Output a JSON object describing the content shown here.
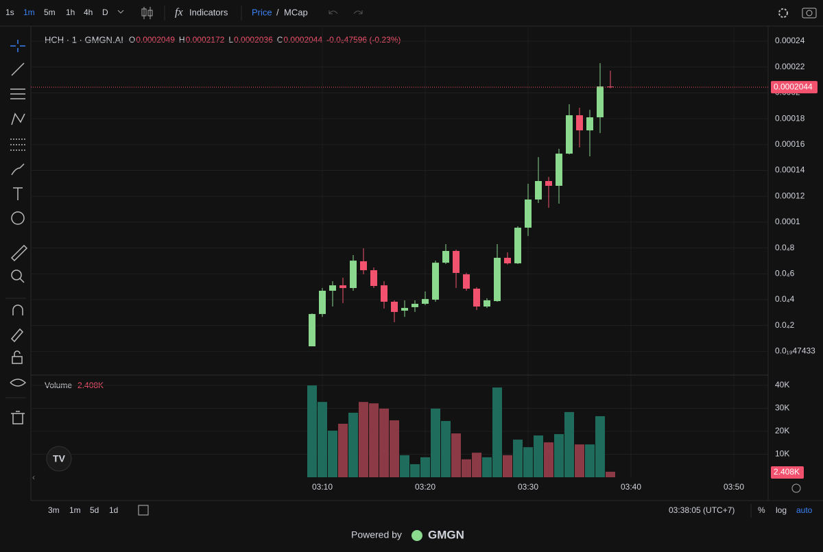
{
  "toolbar": {
    "intervals": [
      "1s",
      "1m",
      "5m",
      "1h",
      "4h",
      "D"
    ],
    "active_interval": 1,
    "indicators": "Indicators",
    "price": "Price",
    "sep": "/",
    "mcap": "MCap"
  },
  "bottom": {
    "ranges": [
      "3m",
      "1m",
      "5d",
      "1d"
    ],
    "clock": "03:38:05 (UTC+7)",
    "percent": "%",
    "log": "log",
    "auto": "auto"
  },
  "footer": {
    "powered": "Powered by",
    "brand": "GMGN"
  },
  "chart_data": {
    "type": "candlestick",
    "legend": {
      "title": "HCH · 1 · GMGN.AI",
      "items": [
        {
          "key": "O",
          "value": 0.0002049
        },
        {
          "key": "H",
          "value": 0.0002172
        },
        {
          "key": "L",
          "value": 0.0002036
        },
        {
          "key": "C",
          "value": 0.0002044
        }
      ],
      "change": "-0.0₆47596 (-0.23%)"
    },
    "up_color": "#8bd88f",
    "down_color": "#f2526e",
    "volume_up_color": "#1f6b5c",
    "volume_down_color": "#8c3a45",
    "x": [
      "03:09",
      "03:10",
      "03:11",
      "03:12",
      "03:13",
      "03:14",
      "03:15",
      "03:16",
      "03:17",
      "03:18",
      "03:19",
      "03:20",
      "03:21",
      "03:22",
      "03:23",
      "03:24",
      "03:25",
      "03:26",
      "03:27",
      "03:28",
      "03:29",
      "03:30",
      "03:31",
      "03:32",
      "03:33",
      "03:34",
      "03:35",
      "03:36",
      "03:37",
      "03:38"
    ],
    "candles": [
      {
        "o": 3.9e-06,
        "h": 2.94e-05,
        "l": 3.9e-06,
        "c": 2.89e-05
      },
      {
        "o": 2.89e-05,
        "h": 4.9e-05,
        "l": 2.67e-05,
        "c": 4.69e-05
      },
      {
        "o": 4.69e-05,
        "h": 5.43e-05,
        "l": 3.47e-05,
        "c": 5.11e-05
      },
      {
        "o": 5.11e-05,
        "h": 5.7e-05,
        "l": 3.73e-05,
        "c": 4.9e-05
      },
      {
        "o": 4.9e-05,
        "h": 7.45e-05,
        "l": 4.69e-05,
        "c": 7.02e-05
      },
      {
        "o": 6.97e-05,
        "h": 7.98e-05,
        "l": 5.96e-05,
        "c": 6.28e-05
      },
      {
        "o": 6.28e-05,
        "h": 6.49e-05,
        "l": 4.9e-05,
        "c": 5.06e-05
      },
      {
        "o": 5.11e-05,
        "h": 5.43e-05,
        "l": 3.31e-05,
        "c": 3.84e-05
      },
      {
        "o": 3.84e-05,
        "h": 3.95e-05,
        "l": 2.25e-05,
        "c": 3.05e-05
      },
      {
        "o": 3.15e-05,
        "h": 3.95e-05,
        "l": 2.67e-05,
        "c": 3.36e-05
      },
      {
        "o": 3.42e-05,
        "h": 3.95e-05,
        "l": 3.05e-05,
        "c": 3.68e-05
      },
      {
        "o": 3.68e-05,
        "h": 4.64e-05,
        "l": 3.58e-05,
        "c": 4.05e-05
      },
      {
        "o": 4e-05,
        "h": 7.02e-05,
        "l": 3.84e-05,
        "c": 6.86e-05
      },
      {
        "o": 6.86e-05,
        "h": 8.3e-05,
        "l": 6.76e-05,
        "c": 7.77e-05
      },
      {
        "o": 7.77e-05,
        "h": 7.87e-05,
        "l": 4.9e-05,
        "c": 6.07e-05
      },
      {
        "o": 5.96e-05,
        "h": 6.07e-05,
        "l": 4.69e-05,
        "c": 4.85e-05
      },
      {
        "o": 4.85e-05,
        "h": 4.96e-05,
        "l": 3.2e-05,
        "c": 3.47e-05
      },
      {
        "o": 3.47e-05,
        "h": 4.11e-05,
        "l": 3.36e-05,
        "c": 3.95e-05
      },
      {
        "o": 3.89e-05,
        "h": 8.3e-05,
        "l": 3.84e-05,
        "c": 7.24e-05
      },
      {
        "o": 7.24e-05,
        "h": 7.66e-05,
        "l": 6.71e-05,
        "c": 6.81e-05
      },
      {
        "o": 6.81e-05,
        "h": 9.68e-05,
        "l": 6.76e-05,
        "c": 9.57e-05
      },
      {
        "o": 9.57e-05,
        "h": 0.0001297,
        "l": 8.93e-05,
        "c": 0.0001175
      },
      {
        "o": 0.0001175,
        "h": 0.0001503,
        "l": 0.0001148,
        "c": 0.0001318
      },
      {
        "o": 0.0001318,
        "h": 0.000135,
        "l": 0.0001111,
        "c": 0.0001281
      },
      {
        "o": 0.0001281,
        "h": 0.0001567,
        "l": 0.0001143,
        "c": 0.000153
      },
      {
        "o": 0.000153,
        "h": 0.0001912,
        "l": 0.0001525,
        "c": 0.0001827
      },
      {
        "o": 0.0001827,
        "h": 0.0001885,
        "l": 0.0001578,
        "c": 0.000171
      },
      {
        "o": 0.000171,
        "h": 0.0001869,
        "l": 0.0001509,
        "c": 0.0001811
      },
      {
        "o": 0.0001811,
        "h": 0.000223,
        "l": 0.0001689,
        "c": 0.000205
      },
      {
        "o": 0.0002049,
        "h": 0.0002172,
        "l": 0.0002036,
        "c": 0.0002044
      }
    ],
    "ylim": [
      -1.73e-05,
      0.000248
    ],
    "yticks": [
      0.00024,
      0.00022,
      0.0002,
      0.00018,
      0.00016,
      0.00014,
      0.00012,
      0.0001,
      {
        "value": 8e-05,
        "label": "0.0₄8"
      },
      {
        "value": 6e-05,
        "label": "0.0₄6"
      },
      {
        "value": 4e-05,
        "label": "0.0₄4"
      },
      {
        "value": 2e-05,
        "label": "0.0₄2"
      },
      {
        "value": 4.7433e-21,
        "label": "0.0₁₉47433"
      }
    ],
    "xticks": [
      "03:10",
      "03:20",
      "03:30",
      "03:40",
      "03:50"
    ],
    "volume": {
      "label": "Volume",
      "last_label": "2.408K",
      "values": [
        40000,
        32800,
        20300,
        23300,
        28100,
        32800,
        32200,
        29900,
        24800,
        9600,
        5700,
        8700,
        29900,
        24500,
        19100,
        7800,
        10700,
        8700,
        39100,
        9600,
        16400,
        13100,
        18200,
        15200,
        18800,
        28400,
        14300,
        14300,
        26600,
        2408
      ],
      "ylim": [
        0,
        43600
      ],
      "yticks": [
        {
          "value": 40000,
          "label": "40K"
        },
        {
          "value": 30000,
          "label": "30K"
        },
        {
          "value": 20000,
          "label": "20K"
        },
        {
          "value": 10000,
          "label": "10K"
        }
      ]
    },
    "grid": true
  }
}
